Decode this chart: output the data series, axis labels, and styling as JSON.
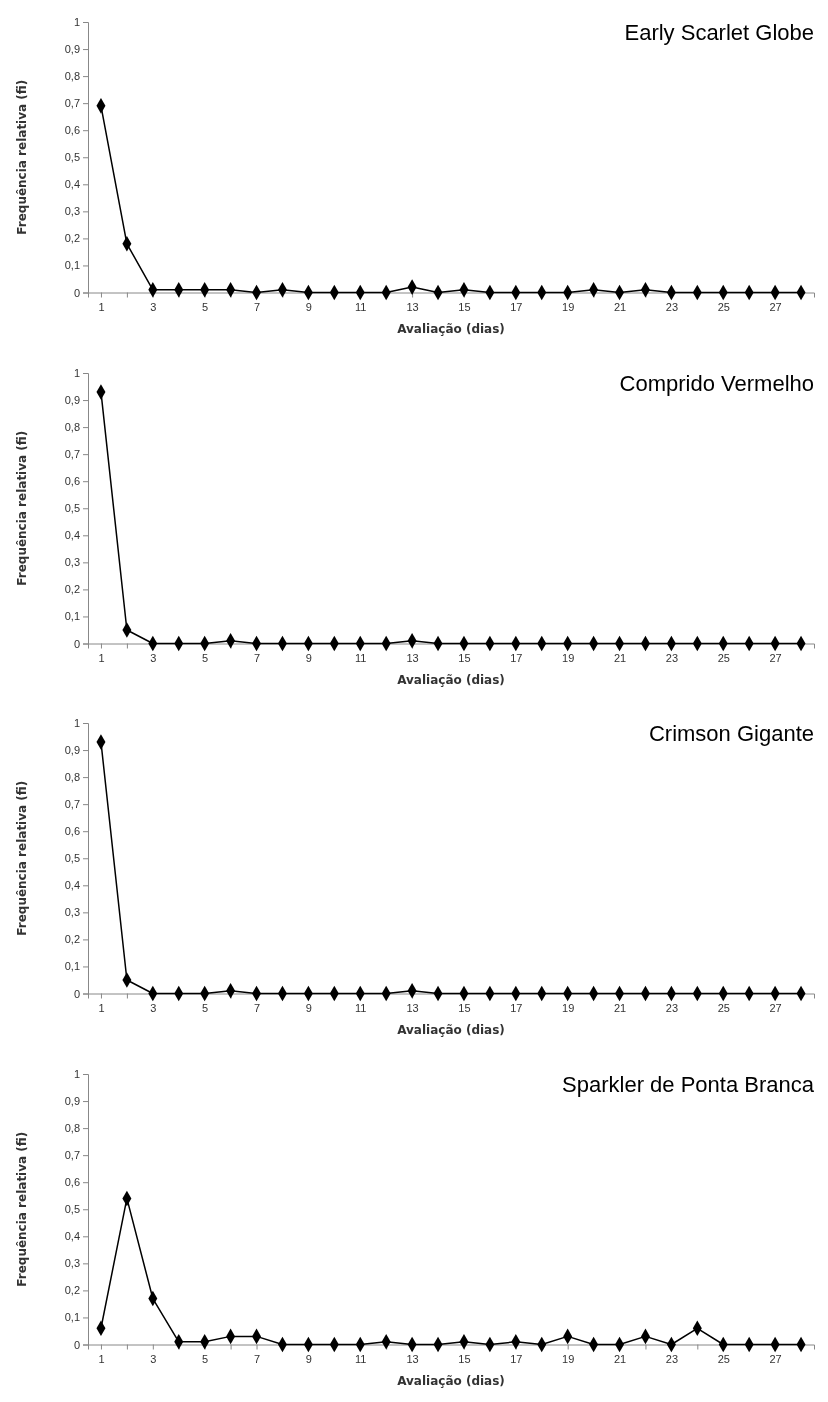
{
  "chart_data": [
    {
      "type": "line",
      "title": "Early Scarlet Globe",
      "xlabel": "Avaliação (dias)",
      "ylabel": "Frequência relativa (fi)",
      "x": [
        1,
        2,
        3,
        4,
        5,
        6,
        7,
        8,
        9,
        10,
        11,
        12,
        13,
        14,
        15,
        16,
        17,
        18,
        19,
        20,
        21,
        22,
        23,
        24,
        25,
        26,
        27,
        28
      ],
      "xlim": [
        0.5,
        28.5
      ],
      "xticks": [
        1,
        {
          "value": 2,
          "label": null
        },
        3,
        {
          "value": 4,
          "label": null
        },
        5,
        {
          "value": 6,
          "label": null
        },
        7,
        {
          "value": 8,
          "label": null
        },
        9,
        {
          "value": 10,
          "label": null
        },
        11,
        {
          "value": 12,
          "label": null
        },
        13,
        {
          "value": 14,
          "label": null
        },
        15,
        {
          "value": 16,
          "label": null
        },
        17,
        {
          "value": 18,
          "label": null
        },
        19,
        {
          "value": 20,
          "label": null
        },
        21,
        {
          "value": 22,
          "label": null
        },
        23,
        {
          "value": 24,
          "label": null
        },
        25,
        {
          "value": 26,
          "label": null
        },
        27,
        {
          "value": 28,
          "label": null
        }
      ],
      "series": [
        {
          "color": "#000000",
          "values": [
            0.69,
            0.18,
            0.01,
            0.01,
            0.01,
            0.01,
            0,
            0.01,
            0,
            0,
            0,
            0,
            0.02,
            0,
            0.01,
            0,
            0,
            0,
            0,
            0.01,
            0,
            0.01,
            0,
            0,
            0,
            0,
            0,
            0
          ]
        }
      ],
      "ylim": [
        0,
        1
      ],
      "yticks": [
        {
          "value": 0,
          "label": "0"
        },
        {
          "value": 0.1,
          "label": "0,1"
        },
        {
          "value": 0.2,
          "label": "0,2"
        },
        {
          "value": 0.3,
          "label": "0,3"
        },
        {
          "value": 0.4,
          "label": "0,4"
        },
        {
          "value": 0.5,
          "label": "0,5"
        },
        {
          "value": 0.6,
          "label": "0,6"
        },
        {
          "value": 0.7,
          "label": "0,7"
        },
        {
          "value": 0.8,
          "label": "0,8"
        },
        {
          "value": 0.9,
          "label": "0,9"
        },
        {
          "value": 1,
          "label": "1"
        }
      ],
      "marker": "diamond",
      "grid": false
    },
    {
      "type": "line",
      "title": "Comprido Vermelho",
      "xlabel": "Avaliação (dias)",
      "ylabel": "Frequência relativa (fi)",
      "x": [
        1,
        2,
        3,
        4,
        5,
        6,
        7,
        8,
        9,
        10,
        11,
        12,
        13,
        14,
        15,
        16,
        17,
        18,
        19,
        20,
        21,
        22,
        23,
        24,
        25,
        26,
        27,
        28
      ],
      "xlim": [
        0.5,
        28.5
      ],
      "xticks": [
        1,
        {
          "value": 2,
          "label": null
        },
        3,
        {
          "value": 4,
          "label": null
        },
        5,
        {
          "value": 6,
          "label": null
        },
        7,
        {
          "value": 8,
          "label": null
        },
        9,
        {
          "value": 10,
          "label": null
        },
        11,
        {
          "value": 12,
          "label": null
        },
        13,
        {
          "value": 14,
          "label": null
        },
        15,
        {
          "value": 16,
          "label": null
        },
        17,
        {
          "value": 18,
          "label": null
        },
        19,
        {
          "value": 20,
          "label": null
        },
        21,
        {
          "value": 22,
          "label": null
        },
        23,
        {
          "value": 24,
          "label": null
        },
        25,
        {
          "value": 26,
          "label": null
        },
        27,
        {
          "value": 28,
          "label": null
        }
      ],
      "series": [
        {
          "color": "#000000",
          "values": [
            0.93,
            0.05,
            0,
            0,
            0,
            0.01,
            0,
            0,
            0,
            0,
            0,
            0,
            0.01,
            0,
            0,
            0,
            0,
            0,
            0,
            0,
            0,
            0,
            0,
            0,
            0,
            0,
            0,
            0
          ]
        }
      ],
      "ylim": [
        0,
        1
      ],
      "yticks": [
        {
          "value": 0,
          "label": "0"
        },
        {
          "value": 0.1,
          "label": "0,1"
        },
        {
          "value": 0.2,
          "label": "0,2"
        },
        {
          "value": 0.3,
          "label": "0,3"
        },
        {
          "value": 0.4,
          "label": "0,4"
        },
        {
          "value": 0.5,
          "label": "0,5"
        },
        {
          "value": 0.6,
          "label": "0,6"
        },
        {
          "value": 0.7,
          "label": "0,7"
        },
        {
          "value": 0.8,
          "label": "0,8"
        },
        {
          "value": 0.9,
          "label": "0,9"
        },
        {
          "value": 1,
          "label": "1"
        }
      ],
      "marker": "diamond",
      "grid": false
    },
    {
      "type": "line",
      "title": "Crimson Gigante",
      "xlabel": "Avaliação (dias)",
      "ylabel": "Frequência relativa (fi)",
      "x": [
        1,
        2,
        3,
        4,
        5,
        6,
        7,
        8,
        9,
        10,
        11,
        12,
        13,
        14,
        15,
        16,
        17,
        18,
        19,
        20,
        21,
        22,
        23,
        24,
        25,
        26,
        27,
        28
      ],
      "xlim": [
        0.5,
        28.5
      ],
      "xticks": [
        1,
        {
          "value": 2,
          "label": null
        },
        3,
        {
          "value": 4,
          "label": null
        },
        5,
        {
          "value": 6,
          "label": null
        },
        7,
        {
          "value": 8,
          "label": null
        },
        9,
        {
          "value": 10,
          "label": null
        },
        11,
        {
          "value": 12,
          "label": null
        },
        13,
        {
          "value": 14,
          "label": null
        },
        15,
        {
          "value": 16,
          "label": null
        },
        17,
        {
          "value": 18,
          "label": null
        },
        19,
        {
          "value": 20,
          "label": null
        },
        21,
        {
          "value": 22,
          "label": null
        },
        23,
        {
          "value": 24,
          "label": null
        },
        25,
        {
          "value": 26,
          "label": null
        },
        27,
        {
          "value": 28,
          "label": null
        }
      ],
      "series": [
        {
          "color": "#000000",
          "values": [
            0.93,
            0.05,
            0,
            0,
            0,
            0.01,
            0,
            0,
            0,
            0,
            0,
            0,
            0.01,
            0,
            0,
            0,
            0,
            0,
            0,
            0,
            0,
            0,
            0,
            0,
            0,
            0,
            0,
            0
          ]
        }
      ],
      "ylim": [
        0,
        1
      ],
      "yticks": [
        {
          "value": 0,
          "label": "0"
        },
        {
          "value": 0.1,
          "label": "0,1"
        },
        {
          "value": 0.2,
          "label": "0,2"
        },
        {
          "value": 0.3,
          "label": "0,3"
        },
        {
          "value": 0.4,
          "label": "0,4"
        },
        {
          "value": 0.5,
          "label": "0,5"
        },
        {
          "value": 0.6,
          "label": "0,6"
        },
        {
          "value": 0.7,
          "label": "0,7"
        },
        {
          "value": 0.8,
          "label": "0,8"
        },
        {
          "value": 0.9,
          "label": "0,9"
        },
        {
          "value": 1,
          "label": "1"
        }
      ],
      "marker": "diamond",
      "grid": false
    },
    {
      "type": "line",
      "title": "Sparkler de Ponta Branca",
      "xlabel": "Avaliação (dias)",
      "ylabel": "Frequência relativa (fi)",
      "x": [
        1,
        2,
        3,
        4,
        5,
        6,
        7,
        8,
        9,
        10,
        11,
        12,
        13,
        14,
        15,
        16,
        17,
        18,
        19,
        20,
        21,
        22,
        23,
        24,
        25,
        26,
        27,
        28
      ],
      "xlim": [
        0.5,
        28.5
      ],
      "xticks": [
        1,
        {
          "value": 2,
          "label": null
        },
        3,
        {
          "value": 4,
          "label": null
        },
        5,
        {
          "value": 6,
          "label": null
        },
        7,
        {
          "value": 8,
          "label": null
        },
        9,
        {
          "value": 10,
          "label": null
        },
        11,
        {
          "value": 12,
          "label": null
        },
        13,
        {
          "value": 14,
          "label": null
        },
        15,
        {
          "value": 16,
          "label": null
        },
        17,
        {
          "value": 18,
          "label": null
        },
        19,
        {
          "value": 20,
          "label": null
        },
        21,
        {
          "value": 22,
          "label": null
        },
        23,
        {
          "value": 24,
          "label": null
        },
        25,
        {
          "value": 26,
          "label": null
        },
        27,
        {
          "value": 28,
          "label": null
        }
      ],
      "series": [
        {
          "color": "#000000",
          "values": [
            0.06,
            0.54,
            0.17,
            0.01,
            0.01,
            0.03,
            0.03,
            0,
            0,
            0,
            0,
            0.01,
            0,
            0,
            0.01,
            0,
            0.01,
            0,
            0.03,
            0,
            0,
            0.03,
            0,
            0.06,
            0,
            0,
            0,
            0
          ]
        }
      ],
      "ylim": [
        0,
        1
      ],
      "yticks": [
        {
          "value": 0,
          "label": "0"
        },
        {
          "value": 0.1,
          "label": "0,1"
        },
        {
          "value": 0.2,
          "label": "0,2"
        },
        {
          "value": 0.3,
          "label": "0,3"
        },
        {
          "value": 0.4,
          "label": "0,4"
        },
        {
          "value": 0.5,
          "label": "0,5"
        },
        {
          "value": 0.6,
          "label": "0,6"
        },
        {
          "value": 0.7,
          "label": "0,7"
        },
        {
          "value": 0.8,
          "label": "0,8"
        },
        {
          "value": 0.9,
          "label": "0,9"
        },
        {
          "value": 1,
          "label": "1"
        }
      ],
      "marker": "diamond",
      "grid": false
    }
  ]
}
